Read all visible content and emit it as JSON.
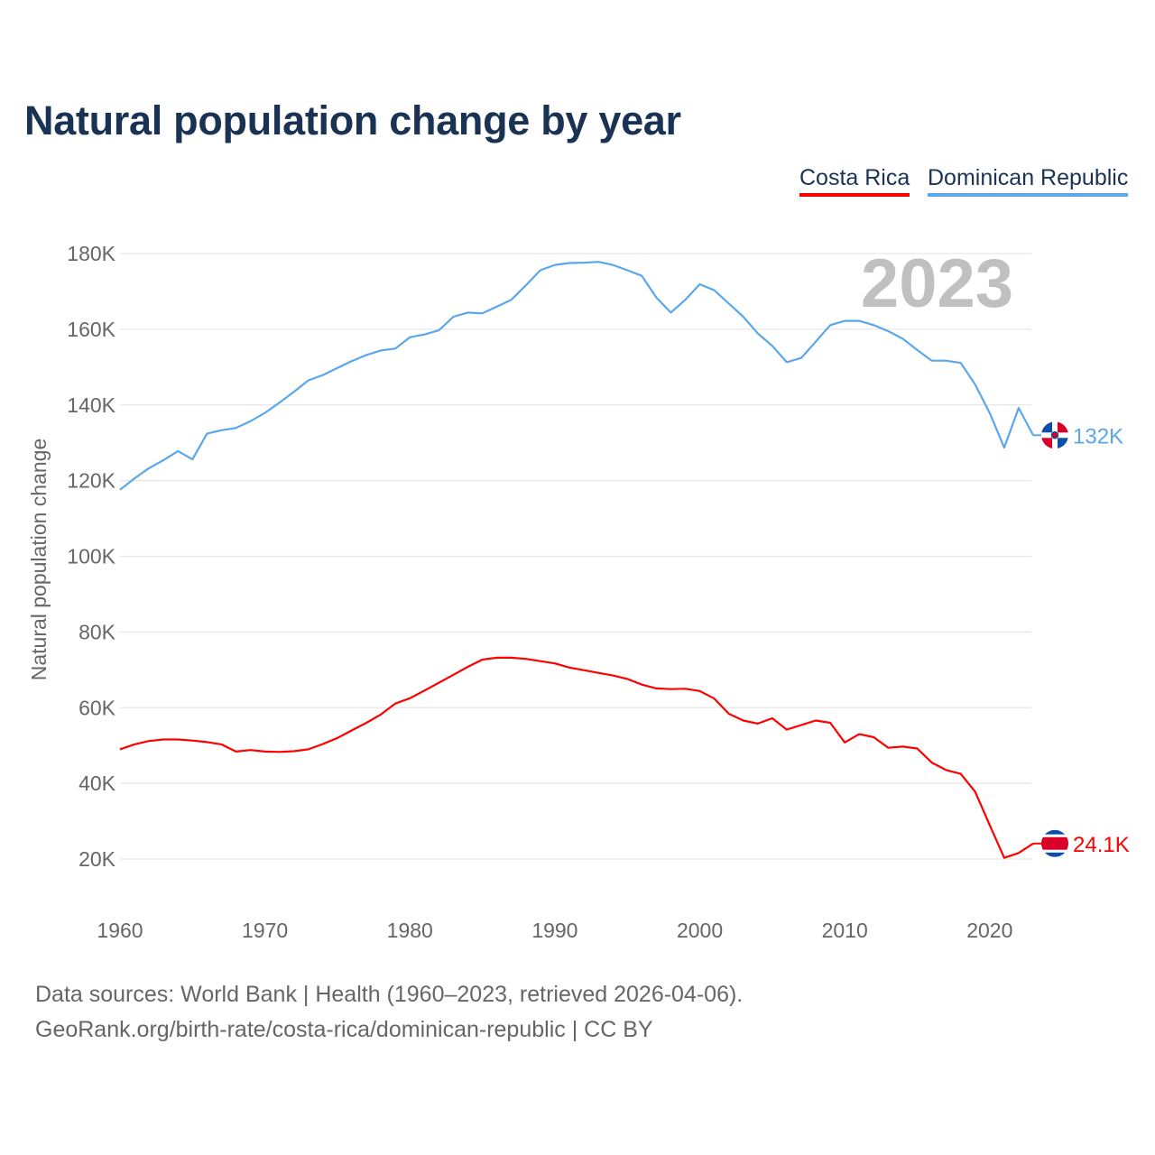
{
  "title": "Natural population change by year",
  "footer": {
    "line1": "Data sources: World Bank | Health (1960–2023, retrieved 2026-04-06).",
    "line2": "GeoRank.org/birth-rate/costa-rica/dominican-republic | CC BY"
  },
  "chart_data": {
    "type": "line",
    "title": "Natural population change by year",
    "xlabel": "",
    "ylabel": "Natural population change",
    "year_watermark": "2023",
    "xlim": [
      1960,
      2023
    ],
    "ylim": [
      20000,
      180000
    ],
    "x_ticks": [
      "1960",
      "1970",
      "1980",
      "1990",
      "2000",
      "2010",
      "2020"
    ],
    "y_ticks": [
      "20K",
      "40K",
      "60K",
      "80K",
      "100K",
      "120K",
      "140K",
      "160K",
      "180K"
    ],
    "grid": true,
    "legend_position": "top-right",
    "x": [
      1960,
      1961,
      1962,
      1963,
      1964,
      1965,
      1966,
      1967,
      1968,
      1969,
      1970,
      1971,
      1972,
      1973,
      1974,
      1975,
      1976,
      1977,
      1978,
      1979,
      1980,
      1981,
      1982,
      1983,
      1984,
      1985,
      1986,
      1987,
      1988,
      1989,
      1990,
      1991,
      1992,
      1993,
      1994,
      1995,
      1996,
      1997,
      1998,
      1999,
      2000,
      2001,
      2002,
      2003,
      2004,
      2005,
      2006,
      2007,
      2008,
      2009,
      2010,
      2011,
      2012,
      2013,
      2014,
      2015,
      2016,
      2017,
      2018,
      2019,
      2020,
      2021,
      2022,
      2023
    ],
    "series": [
      {
        "name": "Costa Rica",
        "color": "#ff0000",
        "end_label": "24.1K",
        "values": [
          49000,
          50300,
          51200,
          51600,
          51600,
          51300,
          50900,
          50300,
          48400,
          48800,
          48400,
          48300,
          48500,
          49000,
          50400,
          52000,
          54000,
          56000,
          58200,
          61100,
          62500,
          64500,
          66600,
          68700,
          70800,
          72700,
          73200,
          73200,
          72900,
          72300,
          71700,
          70600,
          69900,
          69200,
          68500,
          67600,
          66100,
          65100,
          64900,
          65000,
          64400,
          62400,
          58400,
          56600,
          55800,
          57200,
          54200,
          55400,
          56600,
          56000,
          50800,
          53000,
          52200,
          49400,
          49700,
          49200,
          45500,
          43500,
          42500,
          37800,
          29000,
          20300,
          21600,
          24100
        ]
      },
      {
        "name": "Dominican Republic",
        "color": "#5aa7ec",
        "end_label": "132K",
        "values": [
          117600,
          120600,
          123300,
          125400,
          127800,
          125600,
          132400,
          133300,
          133900,
          135700,
          137900,
          140600,
          143500,
          146500,
          147900,
          149800,
          151600,
          153200,
          154400,
          154900,
          157900,
          158600,
          159700,
          163300,
          164400,
          164200,
          166000,
          167800,
          171600,
          175600,
          177000,
          177500,
          177600,
          177800,
          177000,
          175600,
          174100,
          168400,
          164400,
          167800,
          171900,
          170300,
          166800,
          163300,
          158900,
          155600,
          151300,
          152400,
          156700,
          161100,
          162200,
          162200,
          161100,
          159500,
          157500,
          154500,
          151700,
          151700,
          151100,
          145400,
          137900,
          128700,
          139200,
          132000
        ]
      }
    ]
  }
}
